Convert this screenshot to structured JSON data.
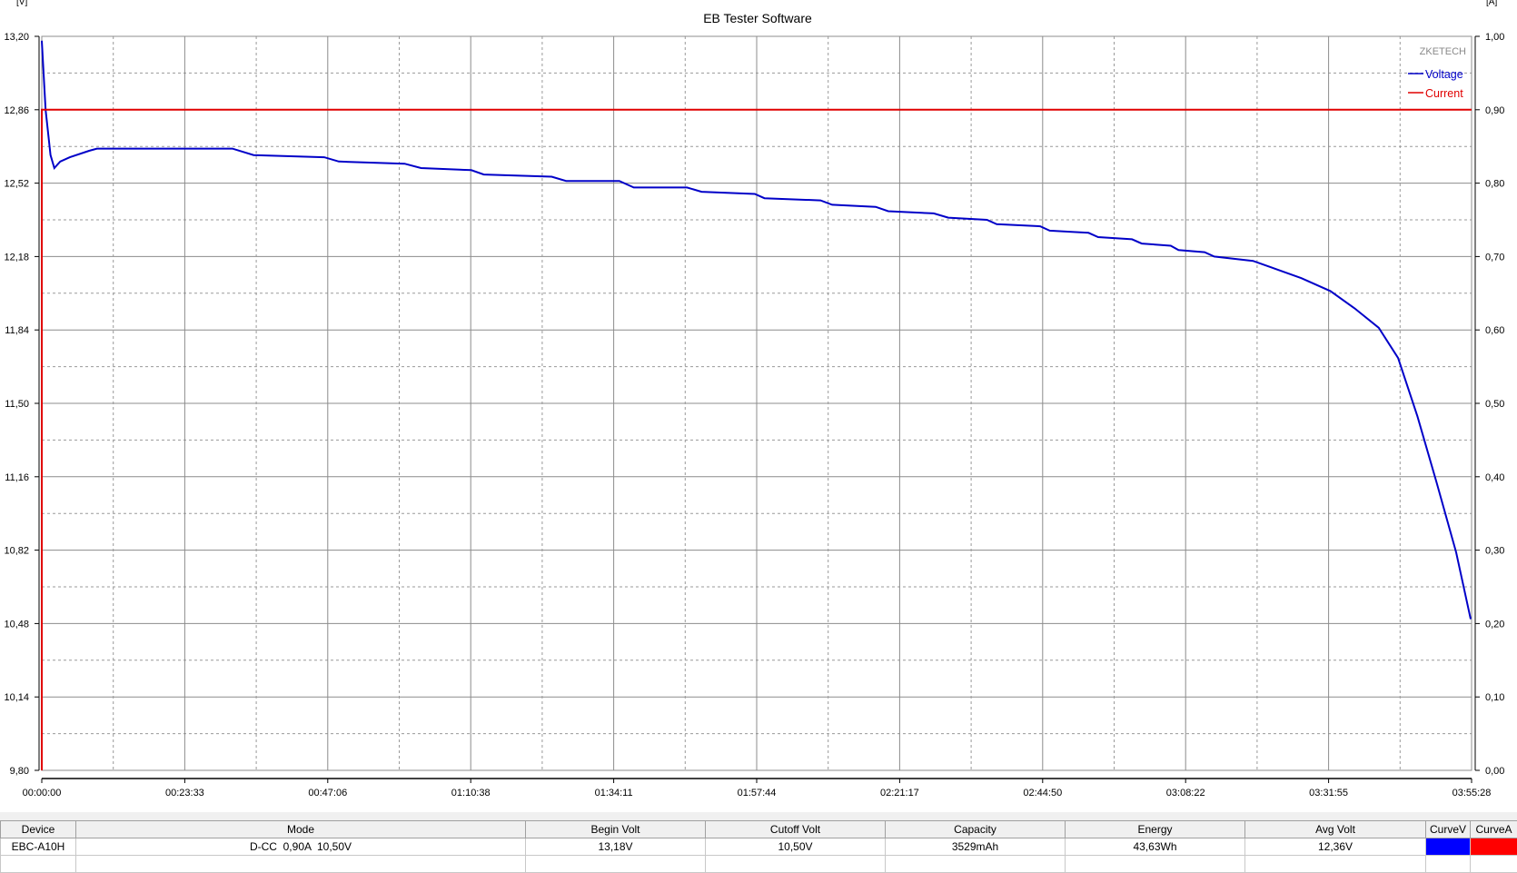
{
  "chart_data": {
    "type": "line",
    "title": "EB Tester Software",
    "watermark": "ZKETECH",
    "y_left_unit": "[V]",
    "y_right_unit": "[A]",
    "ylim_left": [
      9.8,
      13.2
    ],
    "ylim_right": [
      0.0,
      1.0
    ],
    "xlim": [
      "00:00:00",
      "03:55:28"
    ],
    "y_left_ticks": [
      "13,20",
      "12,86",
      "12,52",
      "12,18",
      "11,84",
      "11,50",
      "11,16",
      "10,82",
      "10,48",
      "10,14",
      "9,80"
    ],
    "y_right_ticks": [
      "1,00",
      "0,90",
      "0,80",
      "0,70",
      "0,60",
      "0,50",
      "0,40",
      "0,30",
      "0,20",
      "0,10",
      "0,00"
    ],
    "x_ticks": [
      "00:00:00",
      "00:23:33",
      "00:47:06",
      "01:10:38",
      "01:34:11",
      "01:57:44",
      "02:21:17",
      "02:44:50",
      "03:08:22",
      "03:31:55",
      "03:55:28"
    ],
    "grid": true,
    "legend_position": "top-right",
    "series": [
      {
        "name": "Voltage",
        "axis": "left",
        "color": "#0000c8",
        "points": [
          [
            "00:00:00",
            13.18
          ],
          [
            "00:00:38",
            12.86
          ],
          [
            "00:01:26",
            12.65
          ],
          [
            "00:02:04",
            12.59
          ],
          [
            "00:03:02",
            12.62
          ],
          [
            "00:04:37",
            12.64
          ],
          [
            "00:07:48",
            12.67
          ],
          [
            "00:09:05",
            12.68
          ],
          [
            "00:31:23",
            12.68
          ],
          [
            "00:34:53",
            12.65
          ],
          [
            "00:46:31",
            12.64
          ],
          [
            "00:48:55",
            12.62
          ],
          [
            "00:59:45",
            12.61
          ],
          [
            "01:02:27",
            12.59
          ],
          [
            "01:10:44",
            12.58
          ],
          [
            "01:12:48",
            12.56
          ],
          [
            "01:23:58",
            12.55
          ],
          [
            "01:26:21",
            12.53
          ],
          [
            "01:35:07",
            12.53
          ],
          [
            "01:37:30",
            12.5
          ],
          [
            "01:46:16",
            12.5
          ],
          [
            "01:48:39",
            12.48
          ],
          [
            "01:57:25",
            12.47
          ],
          [
            "01:59:01",
            12.45
          ],
          [
            "02:08:15",
            12.44
          ],
          [
            "02:10:10",
            12.42
          ],
          [
            "02:17:20",
            12.41
          ],
          [
            "02:19:24",
            12.39
          ],
          [
            "02:26:53",
            12.38
          ],
          [
            "02:29:17",
            12.36
          ],
          [
            "02:35:39",
            12.35
          ],
          [
            "02:37:15",
            12.33
          ],
          [
            "02:44:25",
            12.32
          ],
          [
            "02:46:00",
            12.3
          ],
          [
            "02:52:23",
            12.29
          ],
          [
            "02:53:58",
            12.27
          ],
          [
            "02:59:33",
            12.26
          ],
          [
            "03:01:09",
            12.24
          ],
          [
            "03:05:55",
            12.23
          ],
          [
            "03:07:12",
            12.21
          ],
          [
            "03:11:30",
            12.2
          ],
          [
            "03:13:05",
            12.18
          ],
          [
            "03:19:28",
            12.16
          ],
          [
            "03:23:27",
            12.12
          ],
          [
            "03:27:26",
            12.08
          ],
          [
            "03:32:13",
            12.02
          ],
          [
            "03:36:12",
            11.94
          ],
          [
            "03:40:11",
            11.85
          ],
          [
            "03:43:22",
            11.71
          ],
          [
            "03:46:33",
            11.44
          ],
          [
            "03:49:44",
            11.13
          ],
          [
            "03:52:55",
            10.81
          ],
          [
            "03:55:19",
            10.5
          ]
        ]
      },
      {
        "name": "Current",
        "axis": "right",
        "color": "#e00000",
        "points": [
          [
            "00:00:00",
            0.0
          ],
          [
            "00:00:00",
            0.9
          ],
          [
            "03:55:28",
            0.9
          ]
        ]
      }
    ]
  },
  "table": {
    "headers": [
      "Device",
      "Mode",
      "Begin Volt",
      "Cutoff Volt",
      "Capacity",
      "Energy",
      "Avg Volt",
      "CurveV",
      "CurveA"
    ],
    "row": {
      "device": "EBC-A10H",
      "mode": "D-CC  0,90A  10,50V",
      "begin_volt": "13,18V",
      "cutoff_volt": "10,50V",
      "capacity": "3529mAh",
      "energy": "43,63Wh",
      "avg_volt": "12,36V"
    },
    "curve_colors": {
      "voltage": "#0000ff",
      "current": "#ff0000"
    }
  }
}
